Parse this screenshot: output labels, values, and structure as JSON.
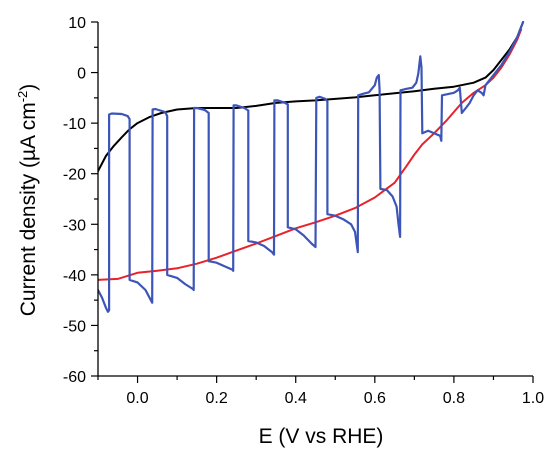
{
  "chart_data": {
    "type": "line",
    "xlabel": "E (V vs RHE)",
    "ylabel_main": "Current density (µA cm",
    "ylabel_sup": "-2",
    "ylabel_end": ")",
    "xlim": [
      -0.1,
      1.0
    ],
    "ylim": [
      -60,
      10
    ],
    "x_ticks": [
      0.0,
      0.2,
      0.4,
      0.6,
      0.8,
      1.0
    ],
    "x_tick_labels": [
      "0.0",
      "0.2",
      "0.4",
      "0.6",
      "0.8",
      "1.0"
    ],
    "y_ticks": [
      -60,
      -50,
      -40,
      -30,
      -20,
      -10,
      0,
      10
    ],
    "y_tick_labels": [
      "-60",
      "-50",
      "-40",
      "-30",
      "-20",
      "-10",
      "0",
      "10"
    ],
    "grid": false,
    "legend": "none",
    "series": [
      {
        "color": "#000000",
        "points": [
          [
            -0.1,
            -19.5
          ],
          [
            -0.08,
            -16.5
          ],
          [
            -0.06,
            -14.5
          ],
          [
            -0.04,
            -12.8
          ],
          [
            -0.02,
            -11.2
          ],
          [
            0.0,
            -10.0
          ],
          [
            0.03,
            -8.8
          ],
          [
            0.06,
            -8.0
          ],
          [
            0.1,
            -7.3
          ],
          [
            0.15,
            -7.0
          ],
          [
            0.2,
            -7.0
          ],
          [
            0.25,
            -7.0
          ],
          [
            0.3,
            -6.6
          ],
          [
            0.35,
            -6.0
          ],
          [
            0.4,
            -5.7
          ],
          [
            0.45,
            -5.5
          ],
          [
            0.5,
            -5.2
          ],
          [
            0.55,
            -4.9
          ],
          [
            0.6,
            -4.5
          ],
          [
            0.65,
            -4.1
          ],
          [
            0.7,
            -3.7
          ],
          [
            0.75,
            -3.2
          ],
          [
            0.8,
            -2.8
          ],
          [
            0.85,
            -2.0
          ],
          [
            0.88,
            -1.0
          ],
          [
            0.9,
            0.5
          ],
          [
            0.92,
            2.5
          ],
          [
            0.94,
            4.5
          ],
          [
            0.96,
            7.0
          ],
          [
            0.97,
            9.0
          ],
          [
            0.975,
            10.0
          ]
        ]
      },
      {
        "color": "#e8222a",
        "points": [
          [
            -0.1,
            -41.0
          ],
          [
            -0.05,
            -40.8
          ],
          [
            0.0,
            -39.6
          ],
          [
            0.05,
            -39.2
          ],
          [
            0.1,
            -38.7
          ],
          [
            0.15,
            -37.8
          ],
          [
            0.2,
            -36.6
          ],
          [
            0.25,
            -35.2
          ],
          [
            0.3,
            -33.8
          ],
          [
            0.35,
            -32.3
          ],
          [
            0.4,
            -30.8
          ],
          [
            0.45,
            -29.6
          ],
          [
            0.5,
            -28.3
          ],
          [
            0.55,
            -26.8
          ],
          [
            0.6,
            -24.7
          ],
          [
            0.65,
            -21.8
          ],
          [
            0.68,
            -18.5
          ],
          [
            0.7,
            -16.2
          ],
          [
            0.72,
            -14.2
          ],
          [
            0.75,
            -12.0
          ],
          [
            0.78,
            -9.6
          ],
          [
            0.8,
            -7.8
          ],
          [
            0.82,
            -6.0
          ],
          [
            0.85,
            -4.0
          ],
          [
            0.88,
            -2.5
          ],
          [
            0.9,
            -1.0
          ],
          [
            0.92,
            1.0
          ],
          [
            0.94,
            3.5
          ],
          [
            0.96,
            6.5
          ],
          [
            0.97,
            8.5
          ]
        ]
      },
      {
        "color": "#3d55b8",
        "points": [
          [
            -0.1,
            -43.0
          ],
          [
            -0.09,
            -44.5
          ],
          [
            -0.08,
            -46.5
          ],
          [
            -0.075,
            -47.3
          ],
          [
            -0.072,
            -47.0
          ],
          [
            -0.072,
            -8.3
          ],
          [
            -0.065,
            -8.1
          ],
          [
            -0.04,
            -8.2
          ],
          [
            -0.025,
            -8.6
          ],
          [
            -0.02,
            -9.2
          ],
          [
            -0.02,
            -41.0
          ],
          [
            0.0,
            -41.5
          ],
          [
            0.02,
            -43.0
          ],
          [
            0.035,
            -45.2
          ],
          [
            0.037,
            -45.5
          ],
          [
            0.038,
            -7.3
          ],
          [
            0.045,
            -7.2
          ],
          [
            0.07,
            -7.8
          ],
          [
            0.075,
            -8.6
          ],
          [
            0.075,
            -40.0
          ],
          [
            0.1,
            -40.6
          ],
          [
            0.12,
            -41.8
          ],
          [
            0.14,
            -42.8
          ],
          [
            0.142,
            -43.0
          ],
          [
            0.143,
            -7.0
          ],
          [
            0.15,
            -7.0
          ],
          [
            0.17,
            -7.4
          ],
          [
            0.18,
            -8.0
          ],
          [
            0.18,
            -37.3
          ],
          [
            0.2,
            -37.6
          ],
          [
            0.22,
            -38.3
          ],
          [
            0.24,
            -39.0
          ],
          [
            0.242,
            -39.2
          ],
          [
            0.243,
            -6.5
          ],
          [
            0.25,
            -6.5
          ],
          [
            0.27,
            -7.0
          ],
          [
            0.28,
            -7.5
          ],
          [
            0.28,
            -33.3
          ],
          [
            0.3,
            -33.6
          ],
          [
            0.32,
            -34.3
          ],
          [
            0.34,
            -35.5
          ],
          [
            0.345,
            -36.0
          ],
          [
            0.346,
            -5.5
          ],
          [
            0.355,
            -5.5
          ],
          [
            0.37,
            -5.9
          ],
          [
            0.38,
            -6.3
          ],
          [
            0.38,
            -30.6
          ],
          [
            0.4,
            -31.0
          ],
          [
            0.42,
            -32.2
          ],
          [
            0.44,
            -33.8
          ],
          [
            0.45,
            -34.5
          ],
          [
            0.452,
            -5.0
          ],
          [
            0.46,
            -4.8
          ],
          [
            0.475,
            -5.2
          ],
          [
            0.48,
            -5.7
          ],
          [
            0.48,
            -28.0
          ],
          [
            0.5,
            -28.3
          ],
          [
            0.52,
            -29.0
          ],
          [
            0.54,
            -30.0
          ],
          [
            0.55,
            -31.5
          ],
          [
            0.557,
            -35.5
          ],
          [
            0.558,
            -4.5
          ],
          [
            0.57,
            -4.2
          ],
          [
            0.585,
            -3.9
          ],
          [
            0.6,
            -2.5
          ],
          [
            0.605,
            -1.0
          ],
          [
            0.61,
            -0.5
          ],
          [
            0.612,
            -3.5
          ],
          [
            0.614,
            -23.0
          ],
          [
            0.63,
            -23.2
          ],
          [
            0.645,
            -24.5
          ],
          [
            0.655,
            -26.5
          ],
          [
            0.66,
            -30.0
          ],
          [
            0.664,
            -32.5
          ],
          [
            0.665,
            -3.5
          ],
          [
            0.68,
            -3.2
          ],
          [
            0.695,
            -3.0
          ],
          [
            0.705,
            -2.0
          ],
          [
            0.71,
            -0.2
          ],
          [
            0.715,
            3.2
          ],
          [
            0.718,
            1.0
          ],
          [
            0.72,
            -12.0
          ],
          [
            0.735,
            -11.5
          ],
          [
            0.75,
            -12.0
          ],
          [
            0.765,
            -12.5
          ],
          [
            0.768,
            -13.5
          ],
          [
            0.77,
            -4.5
          ],
          [
            0.8,
            -4.0
          ],
          [
            0.81,
            -3.5
          ],
          [
            0.815,
            -3.0
          ],
          [
            0.82,
            -8.0
          ],
          [
            0.83,
            -7.0
          ],
          [
            0.84,
            -6.0
          ],
          [
            0.85,
            -4.5
          ],
          [
            0.86,
            -3.5
          ],
          [
            0.87,
            -4.0
          ],
          [
            0.875,
            -4.5
          ],
          [
            0.88,
            -2.5
          ],
          [
            0.9,
            -0.5
          ],
          [
            0.92,
            1.5
          ],
          [
            0.94,
            4.0
          ],
          [
            0.96,
            7.0
          ],
          [
            0.97,
            9.0
          ],
          [
            0.975,
            10.0
          ]
        ]
      }
    ]
  }
}
